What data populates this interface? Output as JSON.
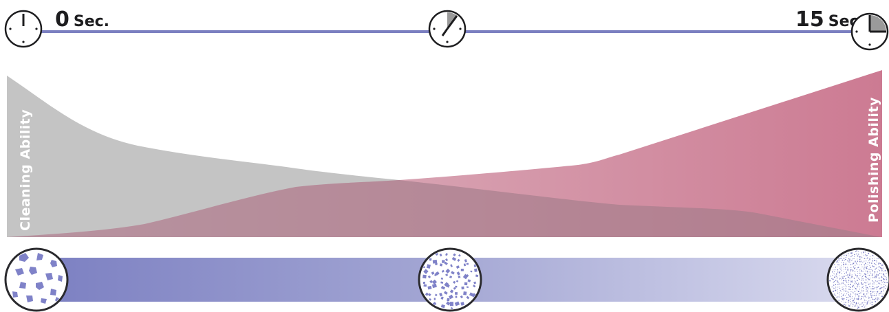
{
  "timeline": {
    "start_label": "0",
    "start_unit": "Sec.",
    "end_label": "15",
    "end_unit": "Sec.",
    "line_color": "#7b7fc0",
    "icons": [
      "clock-empty-icon",
      "clock-quarter-icon",
      "clock-full-icon"
    ]
  },
  "curves": {
    "left_label": "Cleaning Ability",
    "right_label": "Polishing Ability",
    "cleaning_color": "#c4c4c4",
    "polishing_color": "#c86f89"
  },
  "particle_bar": {
    "gradient_start": "#7c80c2",
    "gradient_end": "#d6d8ec",
    "particle_color": "#7f82c8",
    "stages": [
      "coarse-particles-icon",
      "medium-particles-icon",
      "fine-particles-icon"
    ]
  }
}
